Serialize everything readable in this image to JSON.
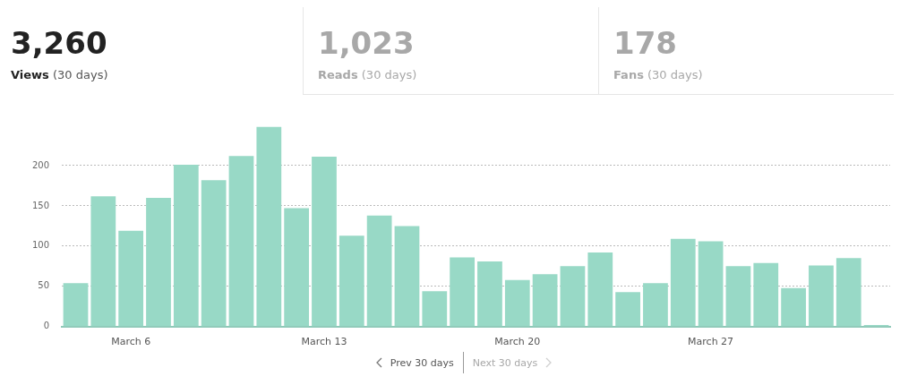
{
  "chart_data": {
    "type": "bar",
    "categories": [
      null,
      null,
      "March 6",
      null,
      null,
      null,
      null,
      null,
      null,
      "March 13",
      null,
      null,
      null,
      null,
      null,
      null,
      "March 20",
      null,
      null,
      null,
      null,
      null,
      null,
      "March 27",
      null,
      null,
      null,
      null,
      null,
      null
    ],
    "values": [
      54,
      162,
      119,
      160,
      201,
      182,
      212,
      248,
      147,
      211,
      113,
      138,
      125,
      44,
      86,
      81,
      58,
      65,
      75,
      92,
      43,
      54,
      109,
      106,
      75,
      79,
      48,
      76,
      85,
      2
    ],
    "color": "#98d9c6",
    "ylim": [
      0,
      250
    ],
    "yticks": [
      0,
      50,
      100,
      150,
      200
    ],
    "grid": "y",
    "annotations": [
      "3,260",
      "Views (30 days)",
      "1,023",
      "Reads (30 days)",
      "178",
      "Fans (30 days)",
      "Prev 30 days",
      "Next 30 days"
    ]
  }
}
